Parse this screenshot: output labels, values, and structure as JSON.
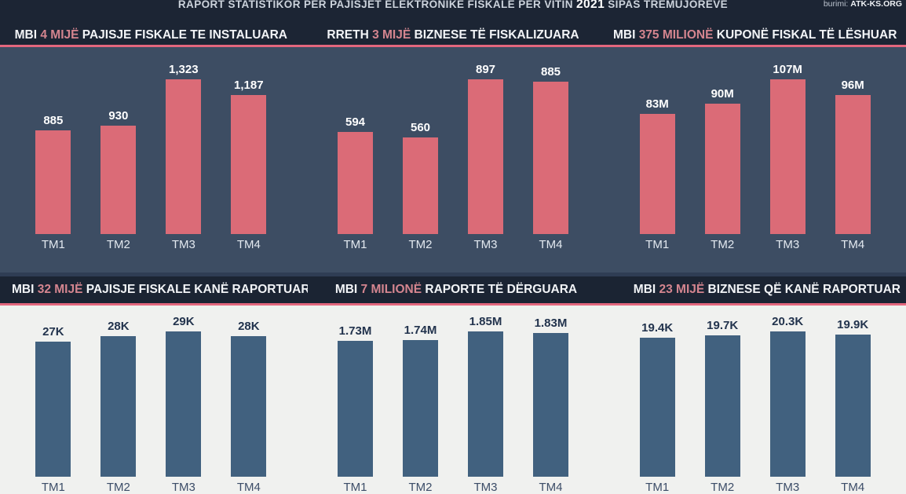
{
  "header": {
    "title_prefix": "RAPORT STATISTIKOR PËR PAJISJET ELEKTRONIKE FISKALE PËR VITIN ",
    "title_year": "2021",
    "title_suffix": " SIPAS TREMUJORËVE",
    "source_label": "burimi: ",
    "source_value": "ATK-KS.ORG"
  },
  "colors": {
    "navy_strip": "#1c2534",
    "top_plot_background": "#3d4d63",
    "bottom_plot_background": "#f0f1ef",
    "top_bar": "#db6b77",
    "bottom_bar": "#41617f",
    "title_accent_pink": "#d4858f",
    "divider_pink": "#e4677e",
    "top_text": "#ffffff",
    "bottom_text": "#22334d"
  },
  "chart_data": [
    {
      "id": "pajisje-instaluara",
      "section": "top",
      "type": "bar",
      "title_prefix": "MBI ",
      "title_accent": "4 MIJË",
      "title_suffix": " PAJISJE FISKALE TE INSTALUARA",
      "categories": [
        "TM1",
        "TM2",
        "TM3",
        "TM4"
      ],
      "values": [
        885,
        930,
        1323,
        1187
      ],
      "value_labels": [
        "885",
        "930",
        "1,323",
        "1,187"
      ],
      "ylim": [
        0,
        1323
      ]
    },
    {
      "id": "biznese-fiskalizuara",
      "section": "top",
      "type": "bar",
      "title_prefix": "RRETH ",
      "title_accent": "3 MIJË",
      "title_suffix": " BIZNESE TË FISKALIZUARA",
      "categories": [
        "TM1",
        "TM2",
        "TM3",
        "TM4"
      ],
      "values": [
        594,
        560,
        897,
        885
      ],
      "value_labels": [
        "594",
        "560",
        "897",
        "885"
      ],
      "ylim": [
        0,
        897
      ]
    },
    {
      "id": "kupone-leshuar",
      "section": "top",
      "type": "bar",
      "title_prefix": "MBI ",
      "title_accent": "375 MILIONË",
      "title_suffix": " KUPONË FISKAL TË LËSHUAR",
      "categories": [
        "TM1",
        "TM2",
        "TM3",
        "TM4"
      ],
      "values": [
        83,
        90,
        107,
        96
      ],
      "value_labels": [
        "83M",
        "90M",
        "107M",
        "96M"
      ],
      "ylim": [
        0,
        107
      ]
    },
    {
      "id": "pajisje-raportuar",
      "section": "bottom",
      "type": "bar",
      "title_prefix": "MBI ",
      "title_accent": "32 MIJË",
      "title_suffix": " PAJISJE FISKALE KANË RAPORTUAR",
      "categories": [
        "TM1",
        "TM2",
        "TM3",
        "TM4"
      ],
      "values": [
        27,
        28,
        29,
        28
      ],
      "value_labels": [
        "27K",
        "28K",
        "29K",
        "28K"
      ],
      "ylim": [
        0,
        29
      ]
    },
    {
      "id": "raporte-derguara",
      "section": "bottom",
      "type": "bar",
      "title_prefix": "MBI ",
      "title_accent": "7 MILIONË",
      "title_suffix": " RAPORTE TË DËRGUARA",
      "categories": [
        "TM1",
        "TM2",
        "TM3",
        "TM4"
      ],
      "values": [
        1.73,
        1.74,
        1.85,
        1.83
      ],
      "value_labels": [
        "1.73M",
        "1.74M",
        "1.85M",
        "1.83M"
      ],
      "ylim": [
        0,
        1.85
      ]
    },
    {
      "id": "biznese-raportuar",
      "section": "bottom",
      "type": "bar",
      "title_prefix": "MBI ",
      "title_accent": "23 MIJË",
      "title_suffix": " BIZNESE QË KANË RAPORTUAR",
      "categories": [
        "TM1",
        "TM2",
        "TM3",
        "TM4"
      ],
      "values": [
        19.4,
        19.7,
        20.3,
        19.9
      ],
      "value_labels": [
        "19.4K",
        "19.7K",
        "20.3K",
        "19.9K"
      ],
      "ylim": [
        0,
        20.3
      ]
    }
  ]
}
